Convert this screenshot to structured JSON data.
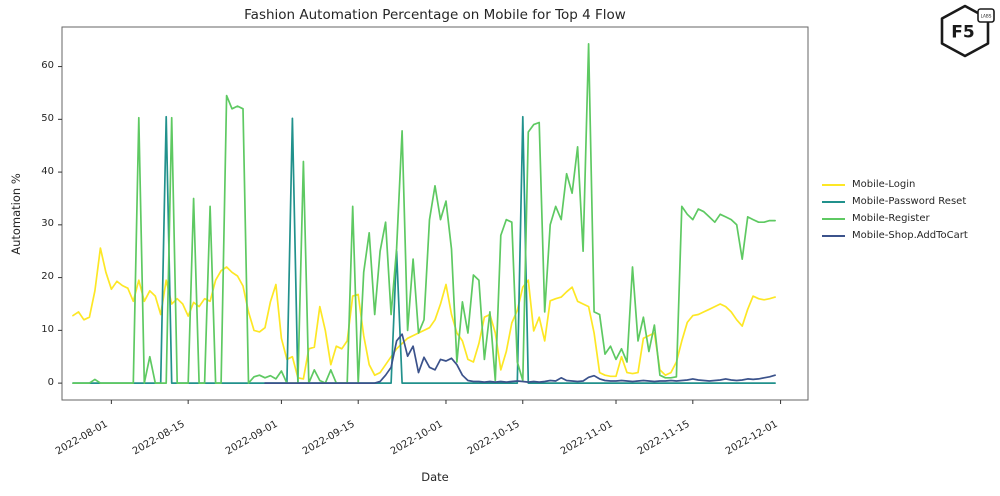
{
  "logo": {
    "label": "F5",
    "badge": "LABS"
  },
  "chart_data": {
    "type": "line",
    "title": "Fashion Automation Percentage on Mobile for Top 4 Flow",
    "xlabel": "Date",
    "ylabel": "Automation %",
    "grid": false,
    "legend_position": "right of plot",
    "x_domain": [
      "2022-07-23",
      "2022-12-06"
    ],
    "ylim": [
      -3.2,
      67.5
    ],
    "y_ticks": [
      0,
      10,
      20,
      30,
      40,
      50,
      60
    ],
    "x_ticks": [
      "2022-08-01",
      "2022-08-15",
      "2022-09-01",
      "2022-09-15",
      "2022-10-01",
      "2022-10-15",
      "2022-11-01",
      "2022-11-15",
      "2022-12-01"
    ],
    "x": [
      "2022-07-25",
      "2022-07-26",
      "2022-07-27",
      "2022-07-28",
      "2022-07-29",
      "2022-07-30",
      "2022-07-31",
      "2022-08-01",
      "2022-08-02",
      "2022-08-03",
      "2022-08-04",
      "2022-08-05",
      "2022-08-06",
      "2022-08-07",
      "2022-08-08",
      "2022-08-09",
      "2022-08-10",
      "2022-08-11",
      "2022-08-12",
      "2022-08-13",
      "2022-08-14",
      "2022-08-15",
      "2022-08-16",
      "2022-08-17",
      "2022-08-18",
      "2022-08-19",
      "2022-08-20",
      "2022-08-21",
      "2022-08-22",
      "2022-08-23",
      "2022-08-24",
      "2022-08-25",
      "2022-08-26",
      "2022-08-27",
      "2022-08-28",
      "2022-08-29",
      "2022-08-30",
      "2022-08-31",
      "2022-09-01",
      "2022-09-02",
      "2022-09-03",
      "2022-09-04",
      "2022-09-05",
      "2022-09-06",
      "2022-09-07",
      "2022-09-08",
      "2022-09-09",
      "2022-09-10",
      "2022-09-11",
      "2022-09-12",
      "2022-09-13",
      "2022-09-14",
      "2022-09-15",
      "2022-09-16",
      "2022-09-17",
      "2022-09-18",
      "2022-09-19",
      "2022-09-20",
      "2022-09-21",
      "2022-09-22",
      "2022-09-23",
      "2022-09-24",
      "2022-09-25",
      "2022-09-26",
      "2022-09-27",
      "2022-09-28",
      "2022-09-29",
      "2022-09-30",
      "2022-10-01",
      "2022-10-02",
      "2022-10-03",
      "2022-10-04",
      "2022-10-05",
      "2022-10-06",
      "2022-10-07",
      "2022-10-08",
      "2022-10-09",
      "2022-10-10",
      "2022-10-11",
      "2022-10-12",
      "2022-10-13",
      "2022-10-14",
      "2022-10-15",
      "2022-10-16",
      "2022-10-17",
      "2022-10-18",
      "2022-10-19",
      "2022-10-20",
      "2022-10-21",
      "2022-10-22",
      "2022-10-23",
      "2022-10-24",
      "2022-10-25",
      "2022-10-26",
      "2022-10-27",
      "2022-10-28",
      "2022-10-29",
      "2022-10-30",
      "2022-10-31",
      "2022-11-01",
      "2022-11-02",
      "2022-11-03",
      "2022-11-04",
      "2022-11-05",
      "2022-11-06",
      "2022-11-07",
      "2022-11-08",
      "2022-11-09",
      "2022-11-10",
      "2022-11-11",
      "2022-11-12",
      "2022-11-13",
      "2022-11-14",
      "2022-11-15",
      "2022-11-16",
      "2022-11-17",
      "2022-11-18",
      "2022-11-19",
      "2022-11-20",
      "2022-11-21",
      "2022-11-22",
      "2022-11-23",
      "2022-11-24",
      "2022-11-25",
      "2022-11-26",
      "2022-11-27",
      "2022-11-28",
      "2022-11-29",
      "2022-11-30"
    ],
    "series": [
      {
        "name": "Mobile-Login",
        "color": "#fde725",
        "values": [
          12.8,
          13.5,
          12.0,
          12.5,
          17.5,
          25.6,
          21.0,
          17.8,
          19.3,
          18.5,
          18.0,
          15.5,
          19.5,
          15.5,
          17.5,
          16.5,
          13.0,
          19.5,
          15.0,
          16.0,
          15.0,
          12.7,
          15.3,
          14.5,
          16.0,
          15.5,
          19.5,
          21.3,
          22.0,
          21.0,
          20.3,
          18.4,
          13.5,
          10.0,
          9.7,
          10.5,
          15.4,
          18.7,
          8.5,
          4.5,
          5.0,
          1.0,
          0.8,
          6.5,
          6.8,
          14.5,
          10.0,
          3.5,
          7.0,
          6.5,
          8.0,
          16.5,
          16.8,
          9.0,
          3.5,
          1.5,
          2.0,
          3.5,
          5.0,
          6.5,
          7.5,
          8.5,
          9.0,
          9.5,
          10.0,
          10.5,
          12.0,
          15.0,
          18.7,
          13.0,
          9.5,
          8.0,
          4.5,
          4.0,
          7.5,
          12.5,
          13.0,
          9.5,
          2.5,
          6.0,
          11.4,
          13.8,
          18.2,
          19.5,
          9.9,
          12.5,
          8.0,
          15.6,
          16.0,
          16.3,
          17.3,
          18.2,
          15.5,
          15.0,
          14.5,
          9.5,
          2.0,
          1.5,
          1.3,
          1.3,
          5.0,
          2.0,
          1.8,
          2.0,
          8.5,
          9.0,
          9.5,
          2.5,
          1.5,
          2.0,
          4.0,
          8.0,
          11.5,
          12.8,
          13.0,
          13.5,
          14.0,
          14.5,
          15.0,
          14.5,
          13.5,
          12.0,
          10.8,
          14.0,
          16.5,
          16.0,
          15.8,
          16.0,
          16.3
        ]
      },
      {
        "name": "Mobile-Password Reset",
        "color": "#21918c",
        "values": [
          0,
          0,
          0,
          0,
          0,
          0,
          0,
          0,
          0,
          0,
          0,
          0,
          0,
          0,
          0,
          0,
          0,
          50.5,
          0,
          0,
          0,
          0,
          0,
          0,
          0,
          0,
          0,
          0,
          0,
          0,
          0,
          0,
          0,
          0,
          0,
          0,
          0,
          0,
          0,
          0,
          50.2,
          0,
          0,
          0,
          0,
          0,
          0,
          0,
          0,
          0,
          0,
          0,
          0,
          0,
          0,
          0,
          0,
          0,
          0,
          25.0,
          0,
          0,
          0,
          0,
          0,
          0,
          0,
          0,
          0,
          0,
          0,
          0,
          0,
          0,
          0,
          0,
          0,
          0,
          0,
          0,
          0,
          0,
          50.5,
          0,
          0,
          0,
          0,
          0,
          0,
          0,
          0,
          0,
          0,
          0,
          0,
          0,
          0,
          0,
          0,
          0,
          0,
          0,
          0,
          0,
          0,
          0,
          0,
          0,
          0,
          0,
          0,
          0,
          0,
          0,
          0,
          0,
          0,
          0,
          0,
          0,
          0,
          0,
          0,
          0,
          0,
          0,
          0,
          0,
          0
        ]
      },
      {
        "name": "Mobile-Register",
        "color": "#5ec962",
        "values": [
          0,
          0,
          0,
          0,
          0.7,
          0,
          0,
          0,
          0,
          0,
          0,
          0,
          50.3,
          0,
          5.0,
          0,
          0,
          0,
          50.3,
          0,
          0,
          0,
          35.0,
          0,
          0,
          33.5,
          0,
          0,
          54.5,
          52.0,
          52.5,
          52.0,
          0,
          1.2,
          1.5,
          1.0,
          1.4,
          0.8,
          2.3,
          0,
          0,
          0,
          42.0,
          0,
          2.5,
          0.5,
          0,
          2.5,
          0,
          0,
          0,
          33.5,
          0,
          21.0,
          28.5,
          13.0,
          25.0,
          30.5,
          13.0,
          25.5,
          47.8,
          10.0,
          23.5,
          9.5,
          12.0,
          31.0,
          37.4,
          31.0,
          34.5,
          25.4,
          4.0,
          15.4,
          9.5,
          20.5,
          19.5,
          4.5,
          13.5,
          0.5,
          28.0,
          31.0,
          30.5,
          4.0,
          0.5,
          47.6,
          49.0,
          49.4,
          13.5,
          30.0,
          33.5,
          31.0,
          39.7,
          36.0,
          44.8,
          25.0,
          64.3,
          13.5,
          13.0,
          5.5,
          7.0,
          4.5,
          6.5,
          4.0,
          22.0,
          8.0,
          12.5,
          6.0,
          11.0,
          1.5,
          1.0,
          1.0,
          1.2,
          33.5,
          32.0,
          31.0,
          33.0,
          32.5,
          31.5,
          30.5,
          32.0,
          31.5,
          31.0,
          30.0,
          23.5,
          31.5,
          31.0,
          30.5,
          30.5,
          30.8,
          30.8
        ]
      },
      {
        "name": "Mobile-Shop.AddToCart",
        "color": "#3b528b",
        "values": [
          null,
          null,
          null,
          null,
          null,
          null,
          null,
          null,
          null,
          null,
          null,
          null,
          null,
          null,
          null,
          null,
          null,
          null,
          null,
          null,
          null,
          null,
          null,
          null,
          null,
          null,
          null,
          null,
          null,
          null,
          null,
          null,
          null,
          null,
          null,
          0,
          0,
          0,
          0,
          0,
          0,
          0,
          0,
          0,
          0,
          0,
          0,
          0,
          0,
          0,
          0,
          0,
          0,
          0,
          0,
          0,
          0.3,
          1.5,
          3.0,
          8.0,
          9.3,
          5.1,
          7.0,
          2.0,
          4.9,
          3.0,
          2.5,
          4.5,
          4.2,
          4.7,
          3.5,
          1.5,
          0.5,
          0.3,
          0.3,
          0.2,
          0.3,
          0.2,
          0.3,
          0.2,
          0.3,
          0.4,
          0.3,
          0.2,
          0.3,
          0.2,
          0.3,
          0.5,
          0.4,
          1.0,
          0.5,
          0.4,
          0.3,
          0.4,
          1.1,
          1.4,
          0.8,
          0.5,
          0.4,
          0.4,
          0.5,
          0.4,
          0.3,
          0.4,
          0.5,
          0.4,
          0.3,
          0.4,
          0.4,
          0.5,
          0.4,
          0.5,
          0.6,
          0.8,
          0.6,
          0.5,
          0.4,
          0.5,
          0.6,
          0.8,
          0.6,
          0.5,
          0.6,
          0.8,
          0.7,
          0.8,
          1.0,
          1.2,
          1.5
        ]
      }
    ]
  }
}
